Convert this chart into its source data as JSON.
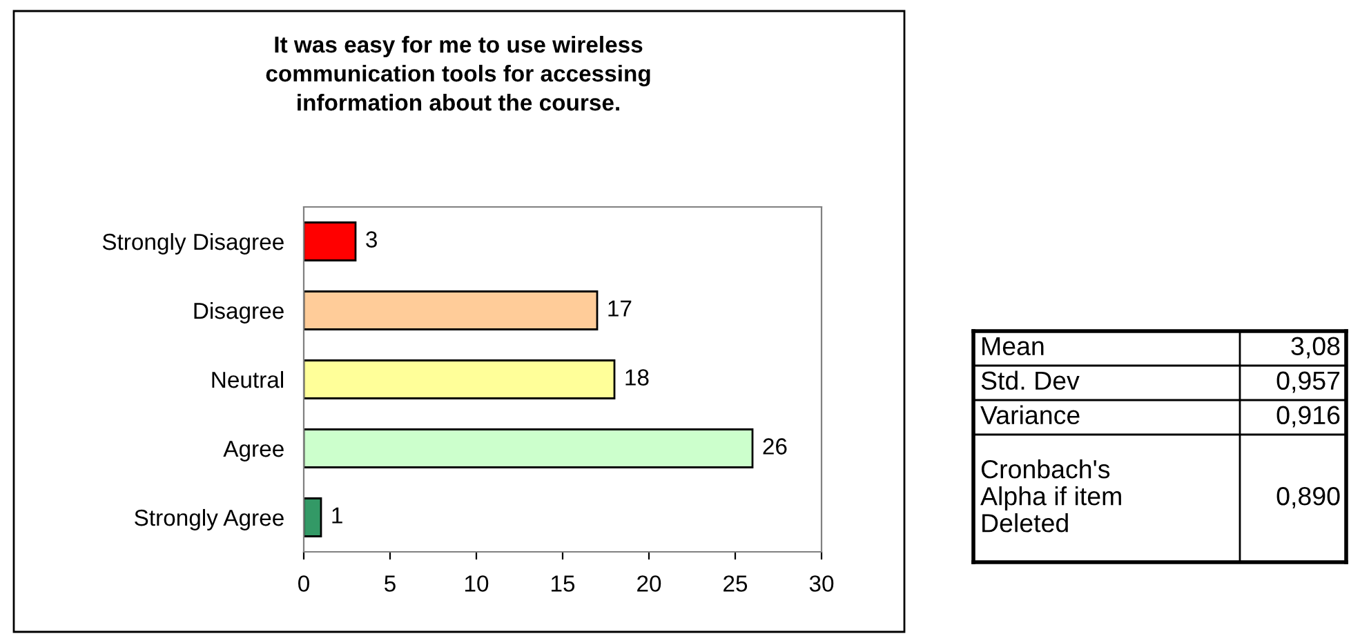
{
  "chart_data": [
    {
      "type": "bar",
      "orientation": "horizontal",
      "title": "It was easy for me to use wireless\ncommunication tools for accessing\ninformation about the course.",
      "categories": [
        "Strongly Disagree",
        "Disagree",
        "Neutral",
        "Agree",
        "Strongly Agree"
      ],
      "values": [
        3,
        17,
        18,
        26,
        1
      ],
      "colors": [
        "#ff0000",
        "#ffcc99",
        "#ffff99",
        "#ccffcc",
        "#339966"
      ],
      "xlim": [
        0,
        30
      ],
      "xticks": [
        0,
        5,
        10,
        15,
        20,
        25,
        30
      ],
      "grid": false,
      "legend": false,
      "data_labels": true
    },
    {
      "type": "other",
      "annotations": [
        "Mean",
        "3,08",
        "Std. Dev",
        "0,957",
        "Variance",
        "0,916",
        "Cronbach's\nAlpha if item\nDeleted",
        "0,890"
      ]
    }
  ]
}
